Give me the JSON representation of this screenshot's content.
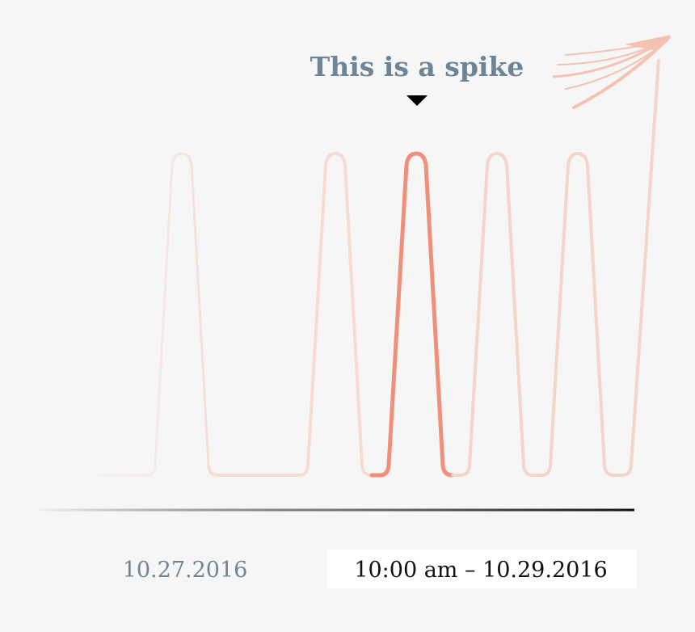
{
  "annotation": "This is a spike",
  "dates": {
    "start": "10.27.2016",
    "end": "10:00 am – 10.29.2016"
  }
}
